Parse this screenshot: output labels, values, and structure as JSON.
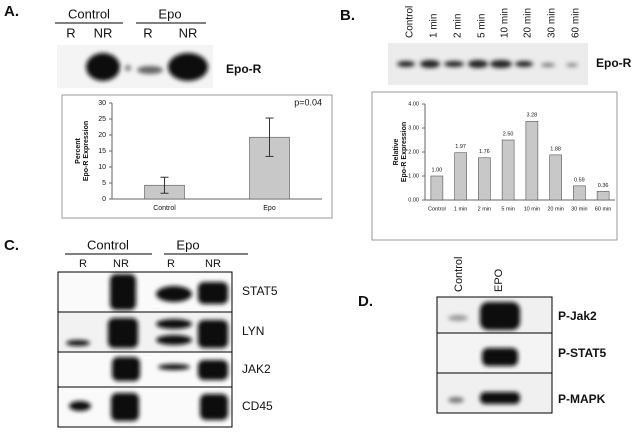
{
  "panels": {
    "a": "A.",
    "b": "B.",
    "c": "C.",
    "d": "D."
  },
  "blot_a": {
    "groups": [
      "Control",
      "Epo"
    ],
    "lanes": [
      "R",
      "NR",
      "R",
      "NR"
    ],
    "label": "Epo-R"
  },
  "blot_b": {
    "lanes": [
      "Control",
      "1 min",
      "2 min",
      "5 min",
      "10 min",
      "20 min",
      "30 min",
      "60 min"
    ],
    "label": "Epo-R"
  },
  "blot_c": {
    "groups": [
      "Control",
      "Epo"
    ],
    "lanes": [
      "R",
      "NR",
      "R",
      "NR"
    ],
    "rows": [
      "STAT5",
      "LYN",
      "JAK2",
      "CD45"
    ]
  },
  "blot_d": {
    "lanes": [
      "Control",
      "EPO"
    ],
    "rows": [
      "P-Jak2",
      "P-STAT5",
      "P-MAPK"
    ]
  },
  "chart_data": [
    {
      "type": "bar",
      "ylabel_lines": [
        "Percent",
        "Epo-R Expression"
      ],
      "annotation": "p=0.04",
      "categories": [
        "Control",
        "Epo"
      ],
      "values": [
        4.3,
        19.3
      ],
      "errors": [
        2.5,
        6
      ],
      "color": "#c8c8c8",
      "ylim": [
        0,
        30
      ],
      "yticks": [
        0,
        5,
        10,
        15,
        20,
        25,
        30
      ]
    },
    {
      "type": "bar",
      "ylabel_lines": [
        "Relative",
        "Epo-R Expression"
      ],
      "categories": [
        "Control",
        "1 min",
        "2 min",
        "5 min",
        "10 min",
        "20 min",
        "30 min",
        "60 min"
      ],
      "values": [
        1.0,
        1.97,
        1.76,
        2.5,
        3.28,
        1.88,
        0.59,
        0.36
      ],
      "value_labels": [
        "1.00",
        "1.97",
        "1.76",
        "2.50",
        "3.28",
        "1.88",
        "0.59",
        "0.36"
      ],
      "color": "#c8c8c8",
      "ylim": [
        0,
        4
      ],
      "yticks": [
        {
          "value": 0,
          "label": "0.00"
        },
        {
          "value": 1,
          "label": "1.00"
        },
        {
          "value": 2,
          "label": "2.00"
        },
        {
          "value": 3,
          "label": "3.00"
        },
        {
          "value": 4,
          "label": "4.00"
        }
      ]
    }
  ]
}
